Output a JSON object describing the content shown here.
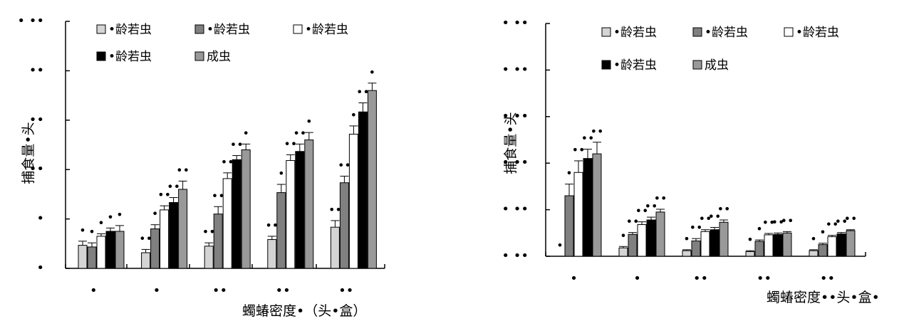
{
  "colors": {
    "instar1": "#d4d4d4",
    "instar2": "#808080",
    "instar3": "#ffffff",
    "instar4": "#000000",
    "adult": "#999999"
  },
  "chart_data": [
    {
      "type": "bar",
      "ylabel": "捕食量•头",
      "xlabel": "蠋蝽密度•（头•盒）",
      "categories": [
        "•",
        "•",
        "••",
        "••",
        "••"
      ],
      "ytick_labels": [
        "•",
        "•",
        "••",
        "••",
        "••",
        "• ••"
      ],
      "ylim": [
        0,
        30
      ],
      "legend": [
        {
          "label": "•龄若虫",
          "color": "instar1"
        },
        {
          "label": "•龄若虫",
          "color": "instar2"
        },
        {
          "label": "•龄若虫",
          "color": "instar3"
        },
        {
          "label": "•龄若虫",
          "color": "instar4"
        },
        {
          "label": "成虫",
          "color": "adult"
        }
      ],
      "series": [
        {
          "color": "instar1",
          "values": [
            2.8,
            1.9,
            2.7,
            3.5,
            5.0
          ],
          "errors": [
            0.5,
            0.4,
            0.4,
            0.4,
            0.8
          ]
        },
        {
          "color": "instar2",
          "values": [
            2.6,
            4.8,
            6.6,
            9.2,
            10.4
          ],
          "errors": [
            0.5,
            0.5,
            0.9,
            1.0,
            0.8
          ]
        },
        {
          "color": "instar3",
          "values": [
            3.9,
            7.1,
            10.9,
            13.1,
            16.3
          ],
          "errors": [
            0.3,
            0.5,
            0.7,
            0.7,
            1.0
          ]
        },
        {
          "color": "instar4",
          "values": [
            4.5,
            8.0,
            13.2,
            14.2,
            19.0
          ],
          "errors": [
            0.4,
            0.6,
            0.5,
            0.9,
            1.1
          ]
        },
        {
          "color": "adult",
          "values": [
            4.5,
            9.6,
            14.4,
            15.6,
            21.6
          ],
          "errors": [
            0.7,
            1.0,
            0.7,
            0.9,
            0.9
          ]
        }
      ],
      "sig_letters": [
        [
          "•",
          "••",
          "••",
          "••",
          "••"
        ],
        [
          "•",
          "•",
          "••",
          "•",
          "••"
        ],
        [
          "•",
          "••",
          "••",
          "••",
          "•"
        ],
        [
          "•",
          "••",
          "••",
          "••",
          "••"
        ],
        [
          "•",
          "••",
          "•",
          "•",
          "•"
        ]
      ]
    },
    {
      "type": "bar",
      "ylabel": "捕食量•头",
      "xlabel": "蠋蝽密度••头•盒•",
      "categories": [
        "•",
        "•",
        "••",
        "••",
        "••"
      ],
      "ytick_labels": [
        "• ••",
        "• ••",
        "• ••",
        "• ••",
        "• ••",
        "• ••"
      ],
      "ylim": [
        0,
        5
      ],
      "legend": [
        {
          "label": "•龄若虫",
          "color": "instar1"
        },
        {
          "label": "•龄若虫",
          "color": "instar2"
        },
        {
          "label": "•龄若虫",
          "color": "instar3"
        },
        {
          "label": "•龄若虫",
          "color": "instar4"
        },
        {
          "label": "成虫",
          "color": "adult"
        }
      ],
      "series": [
        {
          "color": "instar1",
          "values": [
            0,
            0.18,
            0.12,
            0.1,
            0.12
          ],
          "errors": [
            0,
            0.03,
            0.02,
            0.02,
            0.02
          ]
        },
        {
          "color": "instar2",
          "values": [
            1.3,
            0.47,
            0.33,
            0.32,
            0.25
          ],
          "errors": [
            0.25,
            0.04,
            0.05,
            0.03,
            0.03
          ]
        },
        {
          "color": "instar3",
          "values": [
            1.8,
            0.68,
            0.53,
            0.46,
            0.42
          ],
          "errors": [
            0.25,
            0.06,
            0.04,
            0.03,
            0.03
          ]
        },
        {
          "color": "instar4",
          "values": [
            2.1,
            0.78,
            0.57,
            0.47,
            0.48
          ],
          "errors": [
            0.2,
            0.06,
            0.05,
            0.03,
            0.03
          ]
        },
        {
          "color": "adult",
          "values": [
            2.2,
            0.95,
            0.73,
            0.5,
            0.55
          ],
          "errors": [
            0.25,
            0.06,
            0.05,
            0.03,
            0.02
          ]
        }
      ],
      "sig_letters": [
        [
          "•",
          "•",
          "•",
          "•",
          "•"
        ],
        [
          "•",
          "••",
          "••",
          "•",
          "•"
        ],
        [
          "••",
          "••",
          "••",
          "••",
          "••"
        ],
        [
          "••",
          "••",
          "••",
          "••",
          "••"
        ],
        [
          "••",
          "••",
          "••",
          "••",
          "••"
        ]
      ]
    }
  ]
}
